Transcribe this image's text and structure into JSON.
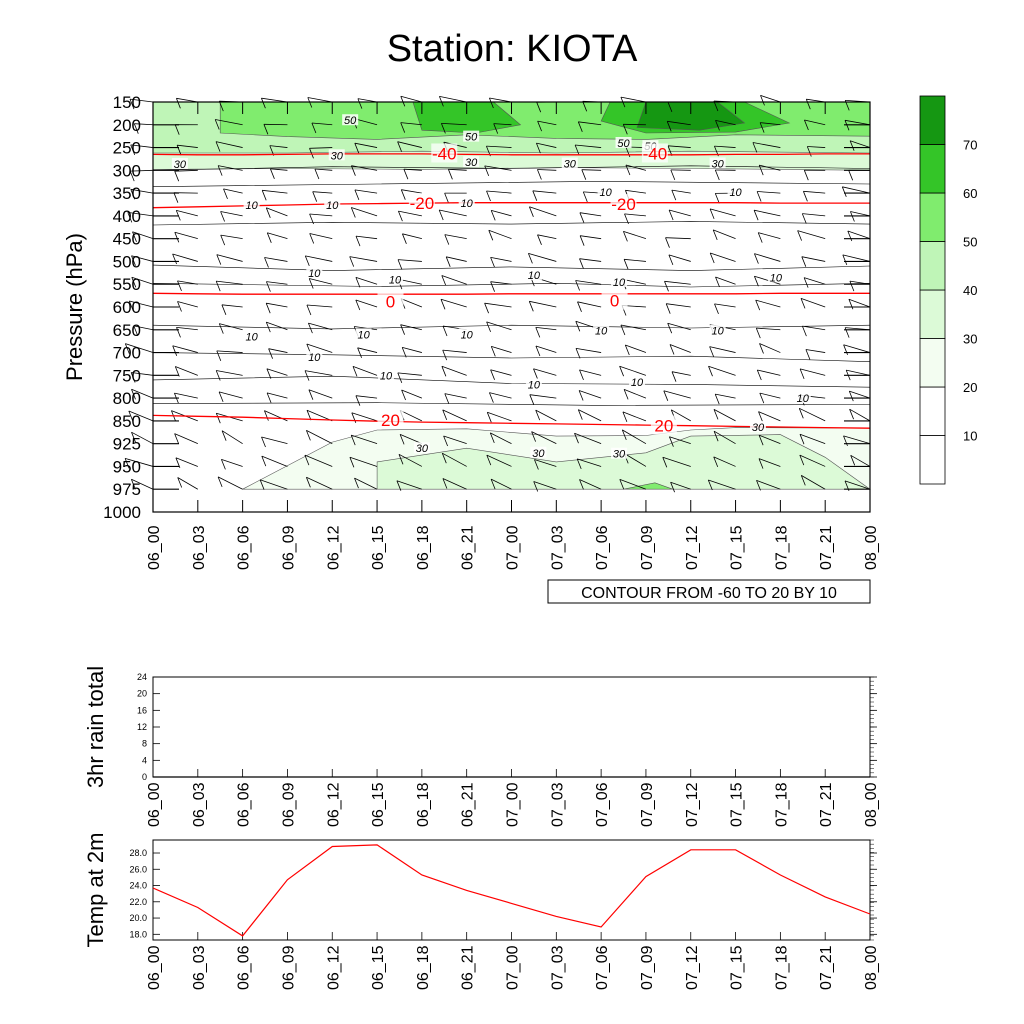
{
  "title": "Station: KIOTA",
  "chart_data": [
    {
      "type": "contour",
      "id": "main",
      "title": "Station: KIOTA",
      "ylabel": "Pressure (hPa)",
      "pressure_levels": [
        150,
        200,
        250,
        300,
        350,
        400,
        450,
        500,
        550,
        600,
        650,
        700,
        750,
        800,
        850,
        925,
        950,
        975,
        1000
      ],
      "time_labels": [
        "06_00",
        "06_03",
        "06_06",
        "06_09",
        "06_12",
        "06_15",
        "06_18",
        "06_21",
        "07_00",
        "07_03",
        "07_06",
        "07_09",
        "07_12",
        "07_15",
        "07_18",
        "07_21",
        "08_00"
      ],
      "contour_info": "CONTOUR FROM -60 TO 20 BY 10",
      "legend_levels": [
        10,
        20,
        30,
        40,
        50,
        60,
        70
      ],
      "legend_labels": [
        "10",
        "20",
        "30",
        "40",
        "50",
        "60",
        "70"
      ],
      "legend_colors": [
        "#ffffff",
        "#f3fdf1",
        "#dcfad7",
        "#bff5b7",
        "#80ec6e",
        "#34c528",
        "#159712"
      ],
      "temperature_contours": [
        {
          "level": -40,
          "label": "-40",
          "pressures": [
            265,
            266,
            266,
            265,
            264,
            264,
            264,
            265,
            266,
            266,
            266,
            266,
            266,
            265,
            265,
            264,
            264
          ]
        },
        {
          "level": -20,
          "label": "-20",
          "pressures": [
            382,
            380,
            378,
            376,
            374,
            373,
            372,
            371,
            371,
            371,
            371,
            371,
            371,
            371,
            372,
            372,
            372
          ]
        },
        {
          "level": 0,
          "label": "0",
          "pressures": [
            570,
            571,
            572,
            572,
            572,
            572,
            572,
            572,
            571,
            571,
            571,
            571,
            571,
            571,
            570,
            570,
            570
          ]
        },
        {
          "level": 20,
          "label": "20",
          "pressures": [
            838,
            840,
            842,
            845,
            848,
            851,
            854,
            856,
            858,
            860,
            862,
            864,
            866,
            868,
            870,
            872,
            874
          ]
        }
      ],
      "temp_label_positions": [
        {
          "label": "-40",
          "time_index": 6.5,
          "pressure": 263
        },
        {
          "label": "-40",
          "time_index": 11.2,
          "pressure": 263
        },
        {
          "label": "-20",
          "time_index": 6.0,
          "pressure": 372
        },
        {
          "label": "-20",
          "time_index": 10.5,
          "pressure": 374
        },
        {
          "label": "0",
          "time_index": 5.3,
          "pressure": 588
        },
        {
          "label": "0",
          "time_index": 10.3,
          "pressure": 586
        },
        {
          "label": "20",
          "time_index": 5.3,
          "pressure": 848
        },
        {
          "label": "20",
          "time_index": 11.4,
          "pressure": 865
        }
      ],
      "speed_labels": [
        {
          "label": "50",
          "time_index": 4.4,
          "pressure": 190
        },
        {
          "label": "50",
          "time_index": 7.1,
          "pressure": 226
        },
        {
          "label": "50",
          "time_index": 10.5,
          "pressure": 240
        },
        {
          "label": "50",
          "time_index": 11.1,
          "pressure": 247
        },
        {
          "label": "30",
          "time_index": 0.6,
          "pressure": 286
        },
        {
          "label": "30",
          "time_index": 4.1,
          "pressure": 267
        },
        {
          "label": "30",
          "time_index": 7.1,
          "pressure": 282
        },
        {
          "label": "30",
          "time_index": 9.3,
          "pressure": 285
        },
        {
          "label": "30",
          "time_index": 12.6,
          "pressure": 285
        },
        {
          "label": "10",
          "time_index": 2.2,
          "pressure": 376
        },
        {
          "label": "10",
          "time_index": 4.0,
          "pressure": 376
        },
        {
          "label": "10",
          "time_index": 7.0,
          "pressure": 372
        },
        {
          "label": "10",
          "time_index": 10.1,
          "pressure": 348
        },
        {
          "label": "10",
          "time_index": 13.0,
          "pressure": 348
        },
        {
          "label": "10",
          "time_index": 3.6,
          "pressure": 525
        },
        {
          "label": "10",
          "time_index": 5.4,
          "pressure": 540
        },
        {
          "label": "10",
          "time_index": 8.5,
          "pressure": 530
        },
        {
          "label": "10",
          "time_index": 10.4,
          "pressure": 545
        },
        {
          "label": "10",
          "time_index": 13.9,
          "pressure": 535
        },
        {
          "label": "10",
          "time_index": 2.2,
          "pressure": 665
        },
        {
          "label": "10",
          "time_index": 4.7,
          "pressure": 660
        },
        {
          "label": "10",
          "time_index": 7.0,
          "pressure": 660
        },
        {
          "label": "10",
          "time_index": 10.0,
          "pressure": 652
        },
        {
          "label": "10",
          "time_index": 12.6,
          "pressure": 652
        },
        {
          "label": "10",
          "time_index": 3.6,
          "pressure": 710
        },
        {
          "label": "10",
          "time_index": 5.2,
          "pressure": 750
        },
        {
          "label": "10",
          "time_index": 8.5,
          "pressure": 770
        },
        {
          "label": "10",
          "time_index": 10.8,
          "pressure": 765
        },
        {
          "label": "10",
          "time_index": 14.5,
          "pressure": 800
        },
        {
          "label": "30",
          "time_index": 6.0,
          "pressure": 930
        },
        {
          "label": "30",
          "time_index": 8.6,
          "pressure": 935
        },
        {
          "label": "30",
          "time_index": 10.4,
          "pressure": 936
        },
        {
          "label": "30",
          "time_index": 13.5,
          "pressure": 870
        }
      ]
    },
    {
      "type": "line",
      "id": "rain",
      "ylabel": "3hr rain total",
      "ylim": [
        0,
        24
      ],
      "yticks": [
        0,
        4,
        8,
        12,
        16,
        20,
        24
      ],
      "x": [
        "06_00",
        "06_03",
        "06_06",
        "06_09",
        "06_12",
        "06_15",
        "06_18",
        "06_21",
        "07_00",
        "07_03",
        "07_06",
        "07_09",
        "07_12",
        "07_15",
        "07_18",
        "07_21",
        "08_00"
      ],
      "values": [
        0,
        0,
        0,
        0,
        0,
        0,
        0,
        0,
        0,
        0,
        0,
        0,
        0,
        0,
        0,
        0,
        0
      ]
    },
    {
      "type": "line",
      "id": "temp",
      "ylabel": "Temp at 2m",
      "ylim": [
        17.3,
        29.6
      ],
      "yticks": [
        "18.0",
        "20.0",
        "22.0",
        "24.0",
        "26.0",
        "28.0"
      ],
      "x": [
        "06_00",
        "06_03",
        "06_06",
        "06_09",
        "06_12",
        "06_15",
        "06_18",
        "06_21",
        "07_00",
        "07_03",
        "07_06",
        "07_09",
        "07_12",
        "07_15",
        "07_18",
        "07_21",
        "08_00"
      ],
      "values": [
        23.7,
        21.3,
        17.8,
        24.7,
        28.8,
        29.0,
        25.3,
        23.4,
        21.8,
        20.2,
        18.9,
        25.1,
        28.4,
        28.4,
        25.3,
        22.6,
        20.5
      ],
      "line_color": "#ff0000"
    }
  ]
}
